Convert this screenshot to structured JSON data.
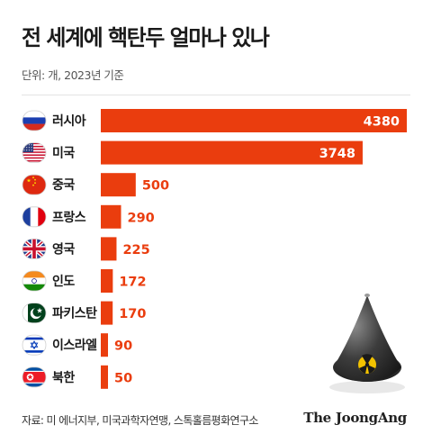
{
  "header": {
    "title": "전 세계에 핵탄두 얼마나 있나",
    "unit_note": "단위: 개, 2023년 기준"
  },
  "chart_data": {
    "type": "bar",
    "orientation": "horizontal",
    "title": "전 세계에 핵탄두 얼마나 있나",
    "categories": [
      "러시아",
      "미국",
      "중국",
      "프랑스",
      "영국",
      "인도",
      "파키스탄",
      "이스라엘",
      "북한"
    ],
    "values": [
      4380,
      3748,
      500,
      290,
      225,
      172,
      170,
      90,
      50
    ],
    "value_labels": [
      "4380",
      "3748",
      "500",
      "290",
      "225",
      "172",
      "170",
      "90",
      "50"
    ],
    "flag_icons": [
      "russia-flag-icon",
      "usa-flag-icon",
      "china-flag-icon",
      "france-flag-icon",
      "uk-flag-icon",
      "india-flag-icon",
      "pakistan-flag-icon",
      "israel-flag-icon",
      "north-korea-flag-icon"
    ],
    "xlim": [
      0,
      4380
    ],
    "bar_color": "#ea3d0e",
    "legend": "none",
    "grid": false
  },
  "footer": {
    "source": "자료: 미 에너지부, 미국과학자연맹, 스톡홀름평화연구소",
    "brand": "The JoongAng"
  },
  "illustration": {
    "name": "nuclear-warhead-cone-icon",
    "symbol_color": "#f2c200"
  }
}
